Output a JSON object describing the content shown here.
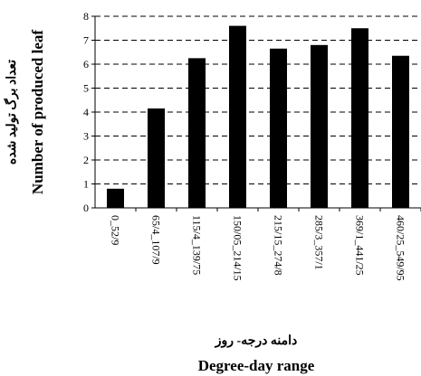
{
  "chart_data": {
    "type": "bar",
    "categories": [
      "0_52/9",
      "65/4_107/9",
      "115/4_139/75",
      "150/05_214/15",
      "215/15_274/8",
      "285/3_357/1",
      "369/1_441/25",
      "460/25_549/95"
    ],
    "values": [
      0.8,
      4.15,
      6.25,
      7.6,
      6.65,
      6.8,
      7.5,
      6.35
    ],
    "ylim": [
      0,
      8
    ],
    "yticks": [
      0,
      1,
      2,
      3,
      4,
      5,
      6,
      7,
      8
    ],
    "ylabel": "Number of produced leaf",
    "ylabel_fa": "تعداد برگ تولید شده",
    "xlabel": "Degree-day range",
    "xlabel_fa": "دامنه درجه- روز",
    "grid": "horizontal-dashed",
    "bar_color": "#000000"
  }
}
